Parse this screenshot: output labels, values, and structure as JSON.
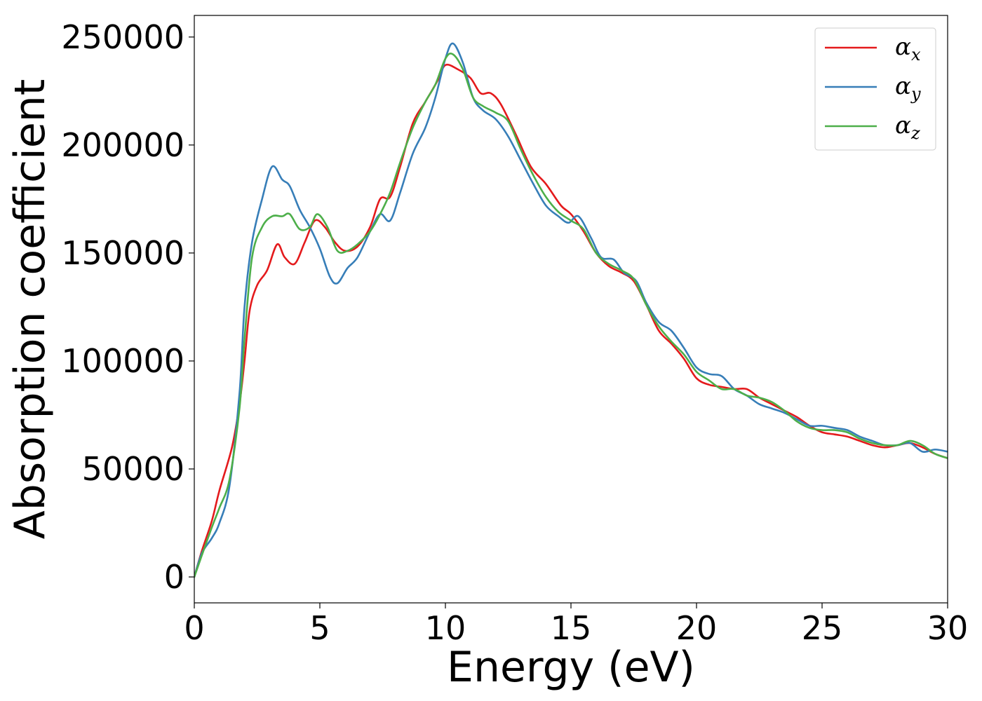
{
  "chart_data": {
    "type": "line",
    "title": "",
    "xlabel": "Energy (eV)",
    "ylabel": "Absorption coefficient",
    "xlim": [
      0,
      30
    ],
    "ylim": [
      -12000,
      260000
    ],
    "xticks": [
      0,
      5,
      10,
      15,
      20,
      25,
      30
    ],
    "yticks": [
      0,
      50000,
      100000,
      150000,
      200000,
      250000
    ],
    "xtick_labels": [
      "0",
      "5",
      "10",
      "15",
      "20",
      "25",
      "30"
    ],
    "ytick_labels": [
      "0",
      "50000",
      "100000",
      "150000",
      "200000",
      "250000"
    ],
    "grid": false,
    "legend_position": "upper right",
    "series": [
      {
        "name": "αx",
        "symbol": "α",
        "subscript": "x",
        "color": "#e41a1c",
        "points": [
          [
            0.0,
            0
          ],
          [
            0.3,
            12000
          ],
          [
            0.7,
            26000
          ],
          [
            1.0,
            40000
          ],
          [
            1.5,
            60000
          ],
          [
            1.8,
            80000
          ],
          [
            2.0,
            100000
          ],
          [
            2.2,
            123000
          ],
          [
            2.5,
            135000
          ],
          [
            2.9,
            142000
          ],
          [
            3.3,
            154000
          ],
          [
            3.6,
            148000
          ],
          [
            4.0,
            145000
          ],
          [
            4.4,
            155000
          ],
          [
            4.8,
            165000
          ],
          [
            5.2,
            162000
          ],
          [
            5.6,
            155000
          ],
          [
            6.0,
            151000
          ],
          [
            6.5,
            153000
          ],
          [
            7.0,
            162000
          ],
          [
            7.4,
            175000
          ],
          [
            7.8,
            176000
          ],
          [
            8.2,
            190000
          ],
          [
            8.7,
            210000
          ],
          [
            9.2,
            220000
          ],
          [
            9.7,
            230000
          ],
          [
            10.0,
            237000
          ],
          [
            10.5,
            235000
          ],
          [
            11.0,
            231000
          ],
          [
            11.4,
            224000
          ],
          [
            11.8,
            224000
          ],
          [
            12.2,
            219000
          ],
          [
            12.8,
            205000
          ],
          [
            13.4,
            190000
          ],
          [
            14.0,
            182000
          ],
          [
            14.6,
            172000
          ],
          [
            15.0,
            168000
          ],
          [
            15.5,
            160000
          ],
          [
            16.0,
            150000
          ],
          [
            16.5,
            144000
          ],
          [
            17.0,
            141000
          ],
          [
            17.5,
            137000
          ],
          [
            18.0,
            126000
          ],
          [
            18.5,
            114000
          ],
          [
            19.0,
            108000
          ],
          [
            19.5,
            101000
          ],
          [
            20.0,
            92000
          ],
          [
            20.5,
            89000
          ],
          [
            21.0,
            88000
          ],
          [
            21.5,
            87000
          ],
          [
            22.0,
            87000
          ],
          [
            22.5,
            83000
          ],
          [
            23.0,
            80000
          ],
          [
            23.5,
            77000
          ],
          [
            24.0,
            74000
          ],
          [
            24.5,
            70000
          ],
          [
            25.0,
            67000
          ],
          [
            25.5,
            66000
          ],
          [
            26.0,
            65000
          ],
          [
            26.5,
            63000
          ],
          [
            27.0,
            61000
          ],
          [
            27.5,
            60000
          ],
          [
            28.0,
            61000
          ],
          [
            28.5,
            62000
          ],
          [
            29.0,
            60000
          ],
          [
            29.5,
            57000
          ],
          [
            30.0,
            55000
          ]
        ]
      },
      {
        "name": "αy",
        "symbol": "α",
        "subscript": "y",
        "color": "#377eb8",
        "points": [
          [
            0.0,
            0
          ],
          [
            0.3,
            11000
          ],
          [
            0.7,
            18000
          ],
          [
            1.0,
            25000
          ],
          [
            1.4,
            42000
          ],
          [
            1.8,
            85000
          ],
          [
            2.0,
            125000
          ],
          [
            2.3,
            155000
          ],
          [
            2.7,
            175000
          ],
          [
            3.1,
            190000
          ],
          [
            3.5,
            184000
          ],
          [
            3.8,
            181000
          ],
          [
            4.2,
            170000
          ],
          [
            4.6,
            162000
          ],
          [
            5.0,
            152000
          ],
          [
            5.4,
            139000
          ],
          [
            5.7,
            136000
          ],
          [
            6.1,
            143000
          ],
          [
            6.5,
            148000
          ],
          [
            7.0,
            160000
          ],
          [
            7.4,
            168000
          ],
          [
            7.8,
            165000
          ],
          [
            8.2,
            178000
          ],
          [
            8.7,
            196000
          ],
          [
            9.2,
            208000
          ],
          [
            9.6,
            222000
          ],
          [
            10.0,
            240000
          ],
          [
            10.3,
            247000
          ],
          [
            10.7,
            238000
          ],
          [
            11.1,
            222000
          ],
          [
            11.5,
            216000
          ],
          [
            12.0,
            212000
          ],
          [
            12.5,
            204000
          ],
          [
            13.0,
            193000
          ],
          [
            13.5,
            182000
          ],
          [
            14.0,
            172000
          ],
          [
            14.5,
            167000
          ],
          [
            14.9,
            164000
          ],
          [
            15.3,
            167000
          ],
          [
            15.8,
            157000
          ],
          [
            16.2,
            148000
          ],
          [
            16.7,
            147000
          ],
          [
            17.1,
            141000
          ],
          [
            17.6,
            137000
          ],
          [
            18.0,
            127000
          ],
          [
            18.5,
            118000
          ],
          [
            19.0,
            114000
          ],
          [
            19.5,
            106000
          ],
          [
            20.0,
            97000
          ],
          [
            20.5,
            94000
          ],
          [
            21.0,
            93000
          ],
          [
            21.5,
            87000
          ],
          [
            22.0,
            84000
          ],
          [
            22.5,
            80000
          ],
          [
            23.0,
            78000
          ],
          [
            23.5,
            76000
          ],
          [
            24.0,
            73000
          ],
          [
            24.5,
            70000
          ],
          [
            25.0,
            70000
          ],
          [
            25.5,
            69000
          ],
          [
            26.0,
            68000
          ],
          [
            26.5,
            65000
          ],
          [
            27.0,
            63000
          ],
          [
            27.5,
            61000
          ],
          [
            28.0,
            61000
          ],
          [
            28.5,
            62000
          ],
          [
            29.0,
            58000
          ],
          [
            29.5,
            59000
          ],
          [
            30.0,
            58000
          ]
        ]
      },
      {
        "name": "αz",
        "symbol": "α",
        "subscript": "z",
        "color": "#4daf4a",
        "points": [
          [
            0.0,
            0
          ],
          [
            0.3,
            10000
          ],
          [
            0.7,
            23000
          ],
          [
            1.0,
            32000
          ],
          [
            1.4,
            45000
          ],
          [
            1.8,
            78000
          ],
          [
            2.0,
            110000
          ],
          [
            2.3,
            148000
          ],
          [
            2.7,
            162000
          ],
          [
            3.1,
            167000
          ],
          [
            3.5,
            167000
          ],
          [
            3.8,
            168000
          ],
          [
            4.2,
            161000
          ],
          [
            4.6,
            162000
          ],
          [
            4.9,
            168000
          ],
          [
            5.3,
            162000
          ],
          [
            5.7,
            151000
          ],
          [
            6.1,
            151000
          ],
          [
            6.5,
            154000
          ],
          [
            7.0,
            160000
          ],
          [
            7.4,
            168000
          ],
          [
            7.8,
            178000
          ],
          [
            8.2,
            192000
          ],
          [
            8.7,
            208000
          ],
          [
            9.2,
            220000
          ],
          [
            9.6,
            228000
          ],
          [
            10.0,
            240000
          ],
          [
            10.3,
            242000
          ],
          [
            10.7,
            235000
          ],
          [
            11.1,
            222000
          ],
          [
            11.5,
            218000
          ],
          [
            12.0,
            215000
          ],
          [
            12.5,
            211000
          ],
          [
            13.0,
            198000
          ],
          [
            13.5,
            186000
          ],
          [
            14.0,
            176000
          ],
          [
            14.5,
            169000
          ],
          [
            15.0,
            165000
          ],
          [
            15.5,
            161000
          ],
          [
            16.0,
            150000
          ],
          [
            16.5,
            145000
          ],
          [
            17.0,
            142000
          ],
          [
            17.5,
            138000
          ],
          [
            18.0,
            126000
          ],
          [
            18.5,
            116000
          ],
          [
            19.0,
            109000
          ],
          [
            19.5,
            103000
          ],
          [
            20.0,
            95000
          ],
          [
            20.5,
            91000
          ],
          [
            21.0,
            87000
          ],
          [
            21.5,
            87000
          ],
          [
            22.0,
            84000
          ],
          [
            22.5,
            83000
          ],
          [
            23.0,
            81000
          ],
          [
            23.5,
            77000
          ],
          [
            24.0,
            72000
          ],
          [
            24.5,
            69000
          ],
          [
            25.0,
            68000
          ],
          [
            25.5,
            68000
          ],
          [
            26.0,
            67000
          ],
          [
            26.5,
            64000
          ],
          [
            27.0,
            62000
          ],
          [
            27.5,
            61000
          ],
          [
            28.0,
            61000
          ],
          [
            28.5,
            63000
          ],
          [
            29.0,
            61000
          ],
          [
            29.5,
            57000
          ],
          [
            30.0,
            55000
          ]
        ]
      }
    ]
  }
}
